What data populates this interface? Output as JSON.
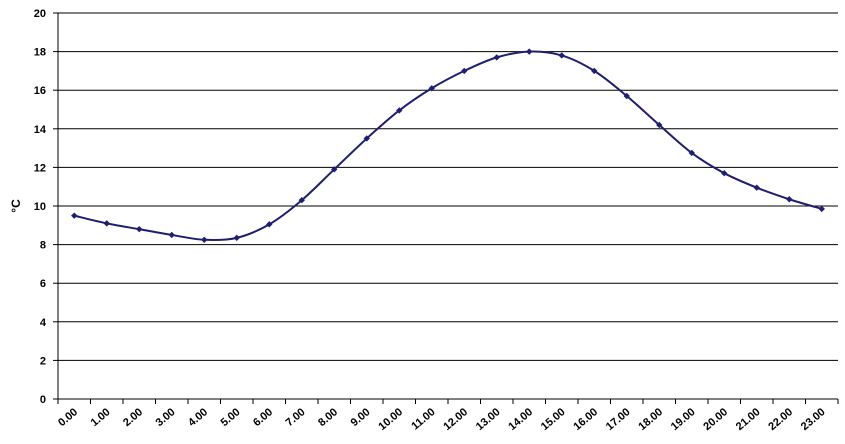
{
  "chart_data": {
    "type": "line",
    "title": "",
    "xlabel": "",
    "ylabel": "°C",
    "ylim": [
      0,
      20
    ],
    "yticks": [
      "0",
      "2",
      "4",
      "6",
      "8",
      "10",
      "12",
      "14",
      "16",
      "18",
      "20"
    ],
    "grid": true,
    "legend": "none",
    "categories": [
      "0.00",
      "1.00",
      "2.00",
      "3.00",
      "4.00",
      "5.00",
      "6.00",
      "7.00",
      "8.00",
      "9.00",
      "10.00",
      "11.00",
      "12.00",
      "13.00",
      "14.00",
      "15.00",
      "16.00",
      "17.00",
      "18.00",
      "19.00",
      "20.00",
      "21.00",
      "22.00",
      "23.00"
    ],
    "series": [
      {
        "color": "#1f1f6f",
        "values": [
          9.5,
          9.1,
          8.8,
          8.5,
          8.25,
          8.35,
          9.05,
          10.3,
          11.9,
          13.5,
          14.95,
          16.1,
          17.0,
          17.7,
          18.0,
          17.8,
          17.0,
          15.7,
          14.2,
          12.75,
          11.7,
          10.95,
          10.35,
          9.85
        ]
      }
    ]
  }
}
